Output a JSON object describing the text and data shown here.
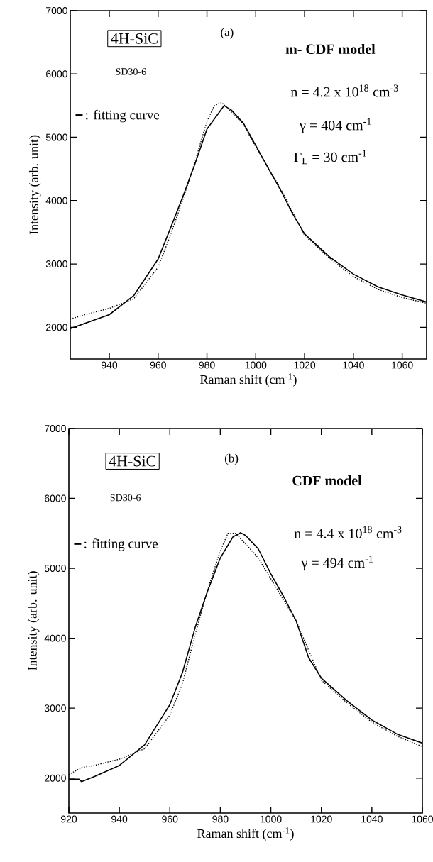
{
  "chart_data": [
    {
      "type": "line",
      "xlabel": "Raman shift   (cm$^{-1}$)",
      "ylabel": "Intensity  (arb. unit)",
      "annotations": [
        "4H-SiC",
        "(a)",
        "m- CDF model",
        "SD30-6",
        "n = 4.2 x 10$^{18}$ cm$^{-3}$",
        "γ  = 404 cm$^{-1}$",
        "Γ$_{L}$ =  30 cm$^{-1}$"
      ],
      "xlim": [
        924,
        1070
      ],
      "ylim": [
        1500,
        7000
      ],
      "xticks": [
        940,
        960,
        980,
        1000,
        1020,
        1040,
        1060
      ],
      "yticks": [
        2000,
        3000,
        4000,
        5000,
        6000,
        7000
      ],
      "legend": "left",
      "marker": "none",
      "series": [
        {
          "color": "#000000",
          "line_style": "dotted",
          "x": [
            924,
            930,
            940,
            950,
            960,
            965,
            970,
            975,
            980,
            983,
            986,
            990,
            995,
            1000,
            1010,
            1020,
            1030,
            1040,
            1050,
            1060,
            1070
          ],
          "values": [
            2130,
            2200,
            2300,
            2450,
            2950,
            3450,
            4000,
            4600,
            5250,
            5500,
            5550,
            5400,
            5200,
            4850,
            4200,
            3450,
            3100,
            2800,
            2600,
            2470,
            2380
          ]
        },
        {
          "name": ": fitting curve",
          "color": "#000000",
          "line_style": "solid",
          "x": [
            924,
            940,
            950,
            960,
            965,
            970,
            975,
            980,
            987,
            990,
            995,
            1000,
            1005,
            1010,
            1015,
            1020,
            1030,
            1040,
            1050,
            1060,
            1070
          ],
          "values": [
            1980,
            2200,
            2500,
            3080,
            3560,
            4050,
            4570,
            5130,
            5500,
            5430,
            5220,
            4870,
            4520,
            4180,
            3800,
            3475,
            3120,
            2840,
            2640,
            2510,
            2400
          ]
        }
      ]
    },
    {
      "type": "line",
      "xlabel": "Raman shift   (cm$^{-1}$)",
      "ylabel": "Intensity  (arb. unit)",
      "annotations": [
        "4H-SiC",
        "(b)",
        "CDF model",
        "SD30-6",
        "n = 4.4 x 10$^{18}$ cm$^{-3}$",
        "γ  = 494 cm$^{-1}$"
      ],
      "xlim": [
        920,
        1060
      ],
      "ylim": [
        1500,
        7000
      ],
      "xticks": [
        920,
        940,
        960,
        980,
        1000,
        1020,
        1040,
        1060
      ],
      "yticks": [
        2000,
        3000,
        4000,
        5000,
        6000,
        7000
      ],
      "legend": "left",
      "marker": "none",
      "series": [
        {
          "color": "#000000",
          "line_style": "dotted",
          "x": [
            920,
            925,
            930,
            940,
            950,
            960,
            965,
            970,
            975,
            980,
            983,
            986,
            990,
            995,
            1000,
            1010,
            1020,
            1030,
            1040,
            1050,
            1060
          ],
          "values": [
            2050,
            2150,
            2180,
            2270,
            2420,
            2900,
            3350,
            4050,
            4700,
            5250,
            5500,
            5500,
            5350,
            5150,
            4850,
            4250,
            3400,
            3080,
            2800,
            2600,
            2450
          ]
        },
        {
          "name": ": fitting curve",
          "color": "#000000",
          "line_style": "solid",
          "x": [
            920,
            924,
            925,
            930,
            940,
            950,
            960,
            965,
            970,
            975,
            980,
            985,
            988,
            990,
            995,
            1000,
            1005,
            1010,
            1015,
            1020,
            1030,
            1040,
            1050,
            1060
          ],
          "values": [
            1985,
            1985,
            1950,
            2020,
            2180,
            2475,
            3050,
            3510,
            4150,
            4680,
            5150,
            5450,
            5510,
            5470,
            5280,
            4920,
            4600,
            4250,
            3720,
            3430,
            3110,
            2830,
            2630,
            2500
          ]
        }
      ]
    }
  ]
}
